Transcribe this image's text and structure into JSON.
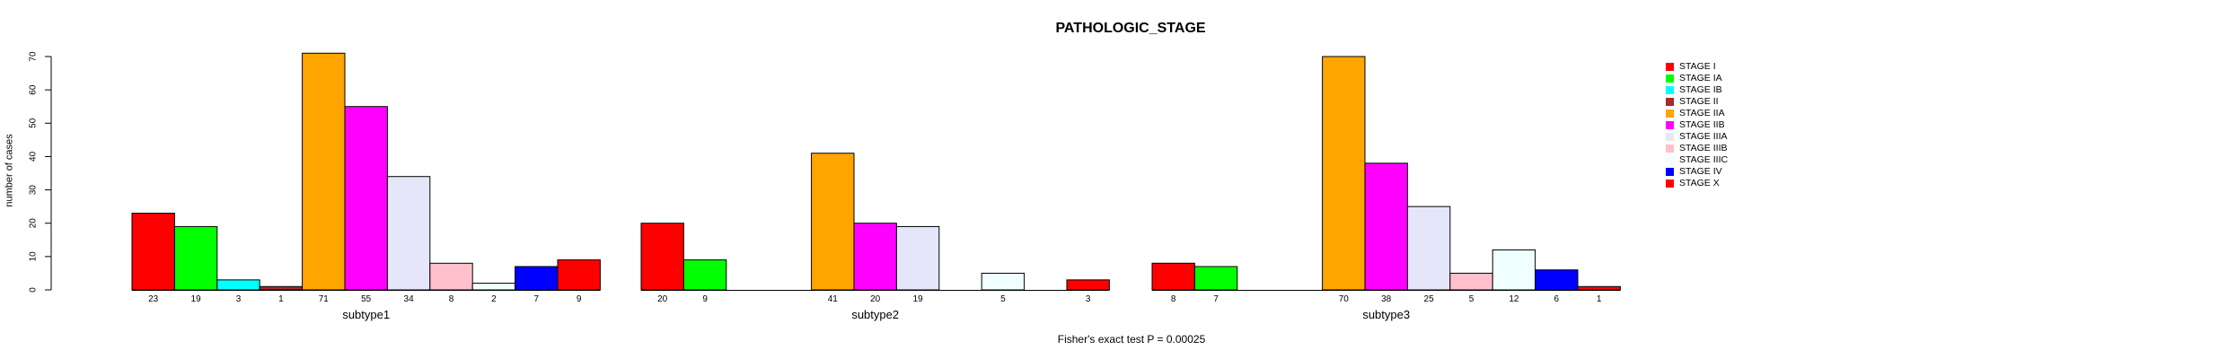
{
  "chart_data": {
    "type": "bar",
    "title": "PATHOLOGIC_STAGE",
    "ylabel": "number of cases",
    "xlabel": "",
    "ylim": [
      0,
      70
    ],
    "yticks": [
      0,
      10,
      20,
      30,
      40,
      50,
      60,
      70
    ],
    "grid": false,
    "legend_position": "right",
    "annotation": "Fisher's exact test P = 0.00025",
    "groups": [
      "subtype1",
      "subtype2",
      "subtype3"
    ],
    "series": [
      {
        "name": "STAGE I",
        "color": "#FF0000",
        "values": [
          23,
          20,
          8
        ]
      },
      {
        "name": "STAGE IA",
        "color": "#00FF00",
        "values": [
          19,
          9,
          7
        ]
      },
      {
        "name": "STAGE IB",
        "color": "#00FFFF",
        "values": [
          3,
          0,
          0
        ]
      },
      {
        "name": "STAGE II",
        "color": "#A52A2A",
        "values": [
          1,
          0,
          0
        ]
      },
      {
        "name": "STAGE IIA",
        "color": "#FFA500",
        "values": [
          71,
          41,
          70
        ]
      },
      {
        "name": "STAGE IIB",
        "color": "#FF00FF",
        "values": [
          55,
          20,
          38
        ]
      },
      {
        "name": "STAGE IIIA",
        "color": "#E6E6FA",
        "values": [
          34,
          19,
          25
        ]
      },
      {
        "name": "STAGE IIIB",
        "color": "#FFC0CB",
        "values": [
          8,
          0,
          5
        ]
      },
      {
        "name": "STAGE IIIC",
        "color": "#F0FFFF",
        "values": [
          2,
          5,
          12
        ]
      },
      {
        "name": "STAGE IV",
        "color": "#0000FF",
        "values": [
          7,
          0,
          6
        ]
      },
      {
        "name": "STAGE X",
        "color": "#FF0000",
        "values": [
          9,
          3,
          1
        ]
      }
    ]
  }
}
